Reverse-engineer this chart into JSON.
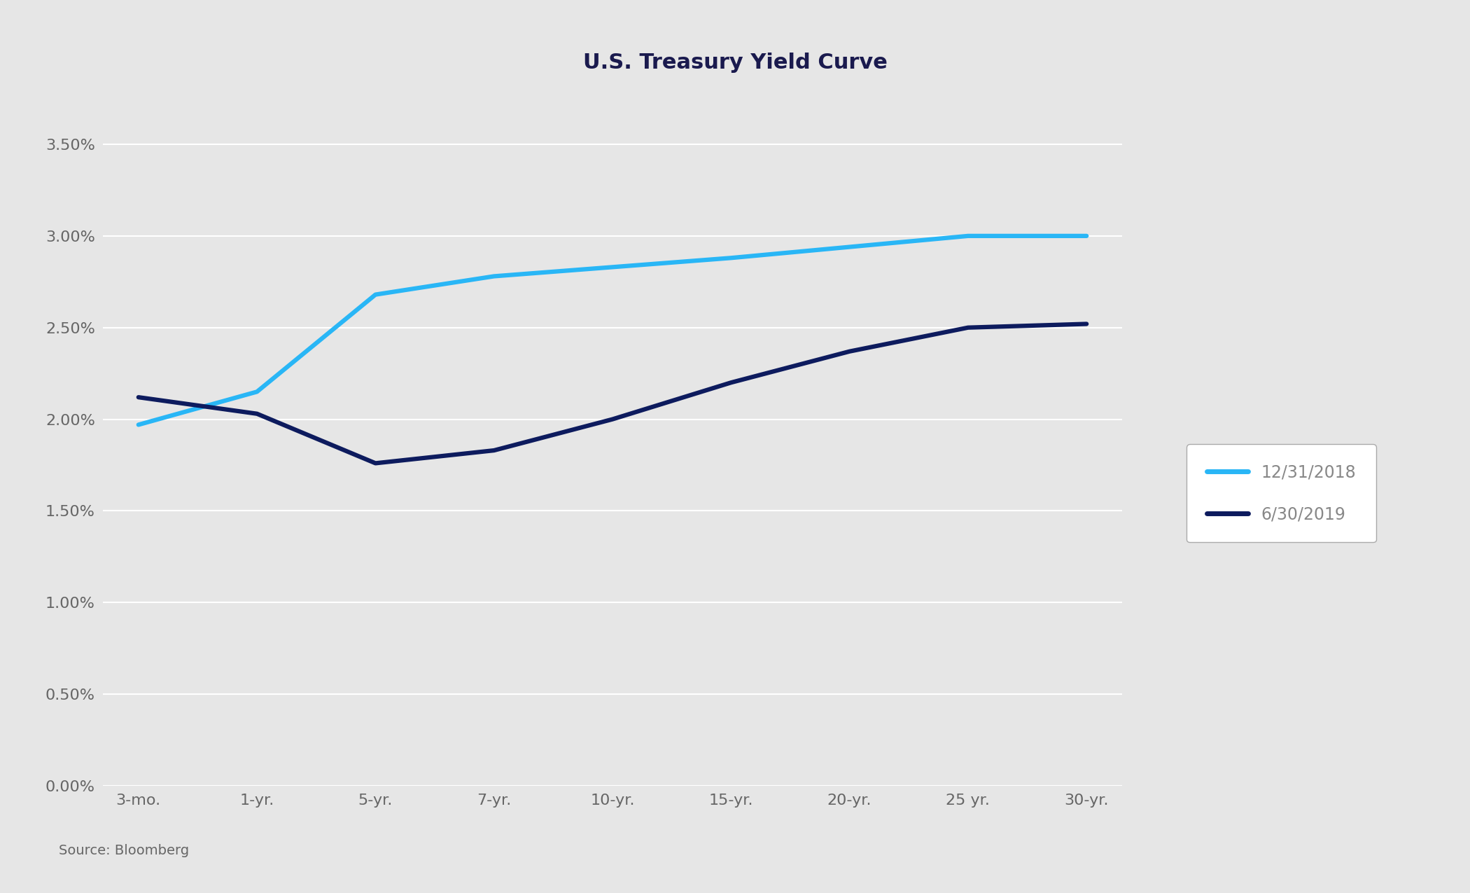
{
  "title": "U.S. Treasury Yield Curve",
  "title_fontsize": 22,
  "title_color": "#1a1a4e",
  "title_fontweight": "bold",
  "x_labels": [
    "3-mo.",
    "1-yr.",
    "5-yr.",
    "7-yr.",
    "10-yr.",
    "15-yr.",
    "20-yr.",
    "25 yr.",
    "30-yr."
  ],
  "series": [
    {
      "label": "12/31/2018",
      "color": "#29b6f6",
      "linewidth": 4.5,
      "values": [
        1.97,
        2.15,
        2.68,
        2.78,
        2.83,
        2.88,
        2.94,
        3.0,
        3.0
      ]
    },
    {
      "label": "6/30/2019",
      "color": "#0d1b5e",
      "linewidth": 4.5,
      "values": [
        2.12,
        2.03,
        1.76,
        1.83,
        2.0,
        2.2,
        2.37,
        2.5,
        2.52
      ]
    }
  ],
  "ylim": [
    0.0,
    0.038
  ],
  "ytick_values": [
    0.0,
    0.005,
    0.01,
    0.015,
    0.02,
    0.025,
    0.03,
    0.035
  ],
  "ytick_labels": [
    "0.00%",
    "0.50%",
    "1.00%",
    "1.50%",
    "2.00%",
    "2.50%",
    "3.00%",
    "3.50%"
  ],
  "background_color": "#e6e6e6",
  "plot_bg_color": "#e6e6e6",
  "grid_color": "#ffffff",
  "source_text": "Source: Bloomberg",
  "source_fontsize": 14,
  "legend_fontsize": 17,
  "tick_fontsize": 16,
  "tick_color": "#666666",
  "legend_text_color": "#888888"
}
